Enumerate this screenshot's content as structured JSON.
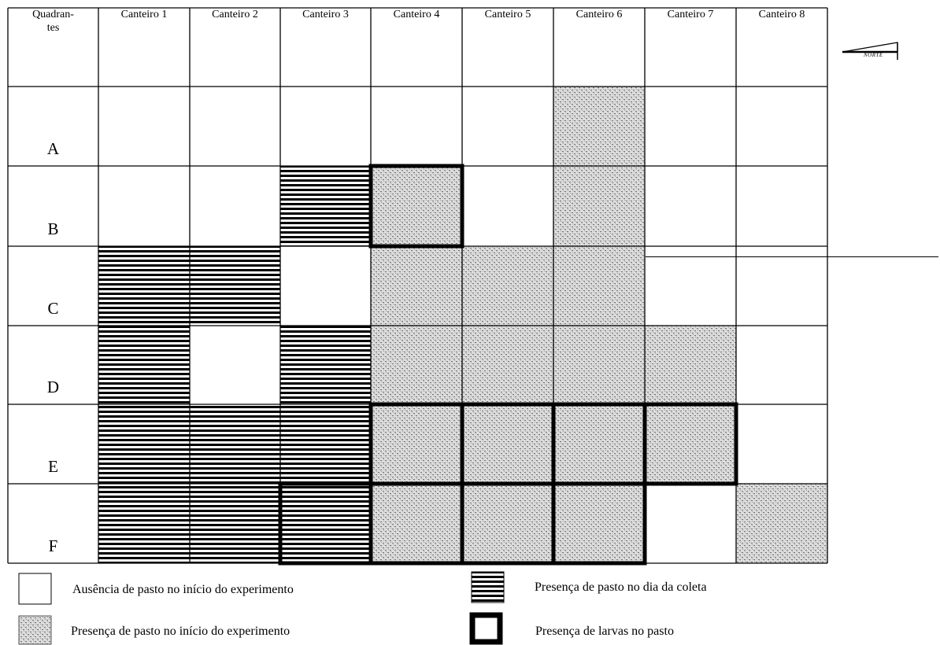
{
  "header": {
    "quadrant_label": "Quadran-\ntes",
    "columns": [
      "Canteiro 1",
      "Canteiro 2",
      "Canteiro 3",
      "Canteiro 4",
      "Canteiro 5",
      "Canteiro 6",
      "Canteiro 7",
      "Canteiro 8"
    ]
  },
  "rows": [
    {
      "label": "A",
      "cells": [
        "none",
        "none",
        "none",
        "none",
        "none",
        "initial",
        "none",
        "none"
      ]
    },
    {
      "label": "B",
      "cells": [
        "none",
        "none",
        "collection",
        "initial",
        "none",
        "initial",
        "none",
        "none"
      ]
    },
    {
      "label": "C",
      "cells": [
        "collection",
        "collection",
        "none",
        "initial",
        "initial",
        "initial",
        "none",
        "none"
      ]
    },
    {
      "label": "D",
      "cells": [
        "collection",
        "none",
        "collection",
        "initial",
        "initial",
        "initial",
        "initial",
        "none"
      ]
    },
    {
      "label": "E",
      "cells": [
        "collection",
        "collection",
        "collection",
        "initial",
        "initial",
        "initial",
        "initial",
        "none"
      ]
    },
    {
      "label": "F",
      "cells": [
        "collection",
        "collection",
        "collection",
        "initial",
        "initial",
        "initial",
        "none",
        "initial"
      ]
    }
  ],
  "larvae": [
    "B-4",
    "E-4",
    "E-5",
    "E-6",
    "E-7",
    "F-3",
    "F-4",
    "F-5",
    "F-6"
  ],
  "north": {
    "label": "NORTE"
  },
  "legend": {
    "absence": "Ausência de pasto no início do experimento",
    "initial": "Presença de pasto no início do experimento",
    "collection": "Presença de pasto no dia da coleta",
    "larvae": "Presença de larvas no pasto"
  }
}
